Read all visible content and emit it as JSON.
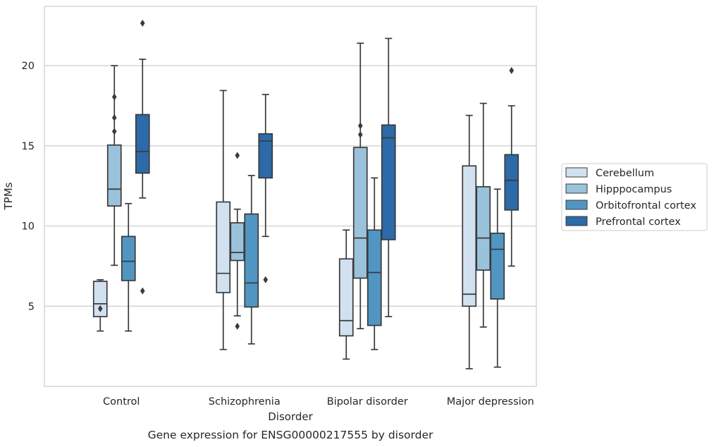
{
  "chart_data": {
    "type": "box",
    "title": "",
    "xlabel": "Disorder",
    "ylabel": "TPMs",
    "caption": "Gene expression for ENSG00000217555 by disorder",
    "ylim": [
      0,
      23.7
    ],
    "yticks": [
      5,
      10,
      15,
      20
    ],
    "grid": "horizontal",
    "legend_position": "right",
    "categories": [
      "Control",
      "Schizophrenia",
      "Bipolar disorder",
      "Major depression"
    ],
    "series": [
      {
        "name": "Cerebellum",
        "color": "#d1e1f0",
        "boxes": [
          {
            "whislo": 3.45,
            "q1": 4.35,
            "med": 5.15,
            "q3": 6.55,
            "whishi": 6.65,
            "fliers": [
              4.85
            ]
          },
          {
            "whislo": 2.3,
            "q1": 5.85,
            "med": 7.05,
            "q3": 11.5,
            "whishi": 18.45,
            "fliers": []
          },
          {
            "whislo": 1.7,
            "q1": 3.15,
            "med": 4.1,
            "q3": 7.95,
            "whishi": 9.75,
            "fliers": []
          },
          {
            "whislo": 1.1,
            "q1": 5.0,
            "med": 5.75,
            "q3": 13.75,
            "whishi": 16.9,
            "fliers": []
          }
        ]
      },
      {
        "name": "Hipppocampus",
        "color": "#9ac2db",
        "boxes": [
          {
            "whislo": 7.55,
            "q1": 11.25,
            "med": 12.3,
            "q3": 15.05,
            "whishi": 20.0,
            "fliers": [
              18.05,
              16.75,
              15.9
            ]
          },
          {
            "whislo": 4.4,
            "q1": 7.85,
            "med": 8.35,
            "q3": 10.2,
            "whishi": 11.05,
            "fliers": [
              14.4,
              3.75
            ]
          },
          {
            "whislo": 3.6,
            "q1": 6.75,
            "med": 9.25,
            "q3": 14.9,
            "whishi": 21.4,
            "fliers": [
              16.25,
              15.7
            ]
          },
          {
            "whislo": 3.7,
            "q1": 7.25,
            "med": 9.25,
            "q3": 12.45,
            "whishi": 17.65,
            "fliers": []
          }
        ]
      },
      {
        "name": "Orbitofrontal cortex",
        "color": "#5196c2",
        "boxes": [
          {
            "whislo": 3.45,
            "q1": 6.6,
            "med": 7.8,
            "q3": 9.35,
            "whishi": 11.4,
            "fliers": []
          },
          {
            "whislo": 2.65,
            "q1": 4.95,
            "med": 6.45,
            "q3": 10.75,
            "whishi": 13.15,
            "fliers": []
          },
          {
            "whislo": 2.3,
            "q1": 3.8,
            "med": 7.1,
            "q3": 9.75,
            "whishi": 13.0,
            "fliers": []
          },
          {
            "whislo": 1.2,
            "q1": 5.45,
            "med": 8.55,
            "q3": 9.55,
            "whishi": 12.3,
            "fliers": []
          }
        ]
      },
      {
        "name": "Prefrontal cortex",
        "color": "#2c6aa9",
        "boxes": [
          {
            "whislo": 11.75,
            "q1": 13.3,
            "med": 14.65,
            "q3": 16.95,
            "whishi": 20.4,
            "fliers": [
              22.65,
              5.95
            ]
          },
          {
            "whislo": 9.35,
            "q1": 13.0,
            "med": 15.3,
            "q3": 15.75,
            "whishi": 18.2,
            "fliers": [
              6.65
            ]
          },
          {
            "whislo": 4.35,
            "q1": 9.15,
            "med": 15.5,
            "q3": 16.3,
            "whishi": 21.7,
            "fliers": []
          },
          {
            "whislo": 7.5,
            "q1": 11.0,
            "med": 12.85,
            "q3": 14.45,
            "whishi": 17.5,
            "fliers": [
              19.7
            ]
          }
        ]
      }
    ]
  }
}
